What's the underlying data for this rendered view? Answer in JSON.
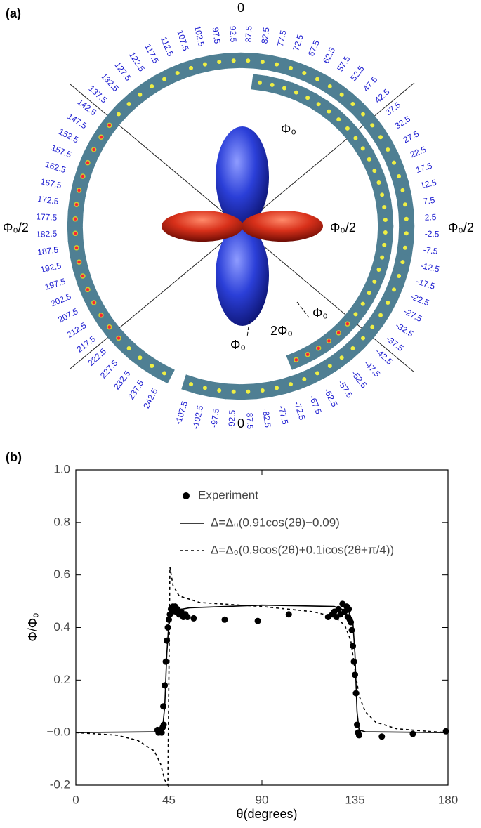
{
  "panel_a": {
    "label": "(a)",
    "top_label": "0",
    "bottom_label": "0",
    "left_label": "Φ₀/2",
    "right_label": "Φ₀/2",
    "inner_label": "Φ₀/2",
    "inner_flux_upper": "Φ₀",
    "inner_flux_lower_right": "Φ₀",
    "inner_flux_double": "2Φ₀",
    "inner_flux_lower_left": "Φ₀",
    "angle_labels": [
      242.5,
      237.5,
      232.5,
      227.5,
      222.5,
      217.5,
      212.5,
      207.5,
      202.5,
      197.5,
      192.5,
      187.5,
      182.5,
      177.5,
      172.5,
      167.5,
      162.5,
      157.5,
      152.5,
      147.5,
      142.5,
      137.5,
      132.5,
      127.5,
      122.5,
      117.5,
      112.5,
      107.5,
      102.5,
      97.5,
      92.5,
      87.5,
      82.5,
      77.5,
      72.5,
      67.5,
      62.5,
      57.5,
      52.5,
      47.5,
      42.5,
      37.5,
      32.5,
      27.5,
      22.5,
      17.5,
      12.5,
      7.5,
      2.5,
      -2.5,
      -7.5,
      -12.5,
      -17.5,
      -22.5,
      -27.5,
      -32.5,
      -37.5,
      -42.5,
      -47.5,
      -52.5,
      -57.5,
      -62.5,
      -67.5,
      -72.5,
      -77.5,
      -82.5,
      -87.5,
      -92.5,
      -97.5,
      -102.5,
      -107.5
    ]
  },
  "chart_data": {
    "type": "line",
    "label": "(b)",
    "x_label": "θ(degrees)",
    "y_label": "Φ/Φ₀",
    "xlim": [
      0,
      180
    ],
    "xticks": [
      0,
      45,
      90,
      135,
      180
    ],
    "ylim": [
      -0.2,
      1.0
    ],
    "yticks": [
      -0.2,
      {
        "value": 0,
        "label": "−0.0"
      },
      0.2,
      0.4,
      0.6,
      0.8,
      {
        "value": 1.0,
        "label": "1.0"
      }
    ],
    "series": [
      {
        "name": "Experiment",
        "style": "markers",
        "color": "#000000",
        "x": [
          39.5,
          40,
          41,
          41.5,
          42,
          42.5,
          42.3,
          43,
          43.5,
          44,
          44.5,
          45,
          45.5,
          46,
          46.5,
          47,
          47.5,
          48,
          48.5,
          49,
          50,
          51,
          52,
          53,
          54,
          57,
          72,
          88,
          103,
          122,
          124,
          125,
          126,
          127,
          128,
          129,
          130,
          131,
          131.5,
          132,
          132.5,
          133,
          133.5,
          134,
          134.5,
          135,
          135.5,
          136,
          136.5,
          137,
          148,
          163,
          179
        ],
        "values": [
          0.01,
          0.0,
          0.01,
          0.0,
          0.02,
          0.03,
          0.1,
          0.18,
          0.27,
          0.35,
          0.4,
          0.43,
          0.45,
          0.47,
          0.46,
          0.48,
          0.47,
          0.48,
          0.46,
          0.47,
          0.45,
          0.46,
          0.44,
          0.45,
          0.44,
          0.435,
          0.43,
          0.425,
          0.45,
          0.44,
          0.45,
          0.46,
          0.44,
          0.47,
          0.45,
          0.49,
          0.46,
          0.48,
          0.44,
          0.47,
          0.43,
          0.42,
          0.39,
          0.33,
          0.27,
          0.22,
          0.15,
          0.03,
          0.0,
          -0.01,
          -0.015,
          -0.005,
          0.005
        ]
      },
      {
        "name": "Δ=Δ₀(0.91cos(2θ)−0.09)",
        "style": "solid",
        "color": "#000000",
        "x": [
          0,
          40,
          42,
          43,
          44,
          45,
          46,
          48,
          55,
          90,
          125,
          132,
          134,
          135,
          136,
          137,
          140,
          180
        ],
        "values": [
          0,
          0.003,
          0.02,
          0.1,
          0.3,
          0.42,
          0.45,
          0.465,
          0.475,
          0.485,
          0.48,
          0.46,
          0.42,
          0.3,
          0.08,
          0.01,
          0.003,
          0
        ]
      },
      {
        "name": "Δ=Δ₀(0.9cos(2θ)+0.1icos(2θ+π/4))",
        "style": "dashed",
        "color": "#000000",
        "x": [
          0,
          20,
          30,
          38,
          41,
          43,
          44.5,
          45.5,
          47,
          50,
          60,
          90,
          115,
          125,
          130,
          133,
          135,
          137,
          140,
          145,
          155,
          170,
          180
        ],
        "values": [
          0,
          -0.01,
          -0.03,
          -0.07,
          -0.12,
          -0.18,
          -0.2,
          0.63,
          0.56,
          0.52,
          0.495,
          0.48,
          0.46,
          0.44,
          0.41,
          0.35,
          0.24,
          0.14,
          0.08,
          0.04,
          0.015,
          0.005,
          0
        ]
      }
    ]
  }
}
